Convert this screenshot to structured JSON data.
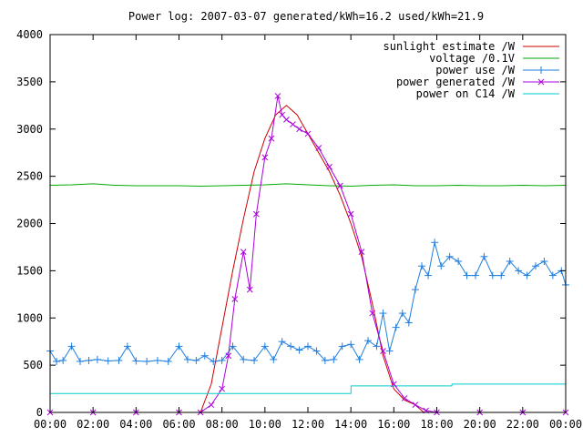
{
  "chart_data": {
    "type": "line",
    "title": "Power log: 2007-03-07 generated/kWh=16.2 used/kWh=21.9",
    "xlabel": "",
    "ylabel": "",
    "xlim": [
      0,
      24
    ],
    "ylim": [
      0,
      4000
    ],
    "x_ticks": [
      {
        "value": 0,
        "label": "00:00"
      },
      {
        "value": 2,
        "label": "02:00"
      },
      {
        "value": 4,
        "label": "04:00"
      },
      {
        "value": 6,
        "label": "06:00"
      },
      {
        "value": 8,
        "label": "08:00"
      },
      {
        "value": 10,
        "label": "10:00"
      },
      {
        "value": 12,
        "label": "12:00"
      },
      {
        "value": 14,
        "label": "14:00"
      },
      {
        "value": 16,
        "label": "16:00"
      },
      {
        "value": 18,
        "label": "18:00"
      },
      {
        "value": 20,
        "label": "20:00"
      },
      {
        "value": 22,
        "label": "22:00"
      },
      {
        "value": 24,
        "label": "00:00"
      }
    ],
    "y_ticks": [
      {
        "value": 0,
        "label": "0"
      },
      {
        "value": 500,
        "label": "500"
      },
      {
        "value": 1000,
        "label": "1000"
      },
      {
        "value": 1500,
        "label": "1500"
      },
      {
        "value": 2000,
        "label": "2000"
      },
      {
        "value": 2500,
        "label": "2500"
      },
      {
        "value": 3000,
        "label": "3000"
      },
      {
        "value": 3500,
        "label": "3500"
      },
      {
        "value": 4000,
        "label": "4000"
      }
    ],
    "grid": false,
    "legend_position": "top-right",
    "series": [
      {
        "name": "sunlight estimate /W",
        "color": "#cc0000",
        "marker": "none",
        "x": [
          7.0,
          7.5,
          8.0,
          8.5,
          9.0,
          9.5,
          10.0,
          10.5,
          11.0,
          11.5,
          12.0,
          12.5,
          13.0,
          13.5,
          14.0,
          14.5,
          15.0,
          15.5,
          16.0,
          16.5,
          17.0,
          17.4
        ],
        "y": [
          0,
          300,
          900,
          1500,
          2050,
          2550,
          2900,
          3150,
          3250,
          3150,
          2950,
          2750,
          2550,
          2300,
          2000,
          1650,
          1150,
          600,
          250,
          130,
          80,
          0
        ]
      },
      {
        "name": "voltage /0.1V",
        "color": "#00aa00",
        "marker": "none",
        "x": [
          0,
          1,
          2,
          3,
          4,
          5,
          6,
          7,
          8,
          9,
          10,
          11,
          12,
          13,
          14,
          15,
          16,
          17,
          18,
          19,
          20,
          21,
          22,
          23,
          24
        ],
        "y": [
          2405,
          2410,
          2420,
          2405,
          2400,
          2400,
          2400,
          2395,
          2400,
          2405,
          2410,
          2420,
          2410,
          2400,
          2395,
          2405,
          2410,
          2400,
          2400,
          2405,
          2400,
          2400,
          2405,
          2400,
          2405
        ]
      },
      {
        "name": "power use /W",
        "color": "#1e7ee0",
        "marker": "plus",
        "x": [
          0,
          0.3,
          0.6,
          1.0,
          1.4,
          1.8,
          2.2,
          2.7,
          3.2,
          3.6,
          4.0,
          4.5,
          5.0,
          5.5,
          6.0,
          6.4,
          6.8,
          7.2,
          7.6,
          8.0,
          8.5,
          9.0,
          9.5,
          10.0,
          10.4,
          10.8,
          11.2,
          11.6,
          12.0,
          12.4,
          12.8,
          13.2,
          13.6,
          14.0,
          14.4,
          14.8,
          15.2,
          15.5,
          15.8,
          16.1,
          16.4,
          16.7,
          17.0,
          17.3,
          17.6,
          17.9,
          18.2,
          18.6,
          19.0,
          19.4,
          19.8,
          20.2,
          20.6,
          21.0,
          21.4,
          21.8,
          22.2,
          22.6,
          23.0,
          23.4,
          23.8,
          24.0
        ],
        "y": [
          650,
          540,
          550,
          700,
          540,
          550,
          560,
          545,
          550,
          700,
          545,
          540,
          550,
          540,
          700,
          560,
          550,
          600,
          540,
          550,
          700,
          560,
          550,
          700,
          560,
          750,
          700,
          660,
          700,
          650,
          550,
          560,
          700,
          720,
          560,
          760,
          700,
          1050,
          650,
          900,
          1050,
          950,
          1300,
          1550,
          1450,
          1800,
          1550,
          1650,
          1600,
          1450,
          1450,
          1650,
          1450,
          1450,
          1600,
          1500,
          1450,
          1550,
          1600,
          1450,
          1500,
          1350
        ]
      },
      {
        "name": "power generated /W",
        "color": "#aa00dd",
        "marker": "cross",
        "x": [
          0,
          2,
          4,
          6,
          7.0,
          7.5,
          8.0,
          8.3,
          8.6,
          9.0,
          9.3,
          9.6,
          10.0,
          10.3,
          10.6,
          10.8,
          11.0,
          11.3,
          11.6,
          12.0,
          12.5,
          13.0,
          13.5,
          14.0,
          14.5,
          15.0,
          15.5,
          16.0,
          16.5,
          17.0,
          17.5,
          18.0,
          20,
          22,
          24
        ],
        "y": [
          0,
          0,
          0,
          0,
          0,
          80,
          250,
          600,
          1200,
          1700,
          1300,
          2100,
          2700,
          2900,
          3350,
          3150,
          3100,
          3050,
          3000,
          2950,
          2800,
          2600,
          2400,
          2100,
          1700,
          1050,
          650,
          300,
          150,
          80,
          20,
          0,
          0,
          0,
          0
        ]
      },
      {
        "name": "power on C14 /W",
        "color": "#00cccc",
        "marker": "none",
        "x": [
          0,
          14.0,
          14.01,
          18.7,
          18.71,
          24.0
        ],
        "y": [
          200,
          200,
          280,
          280,
          300,
          300
        ]
      }
    ]
  }
}
